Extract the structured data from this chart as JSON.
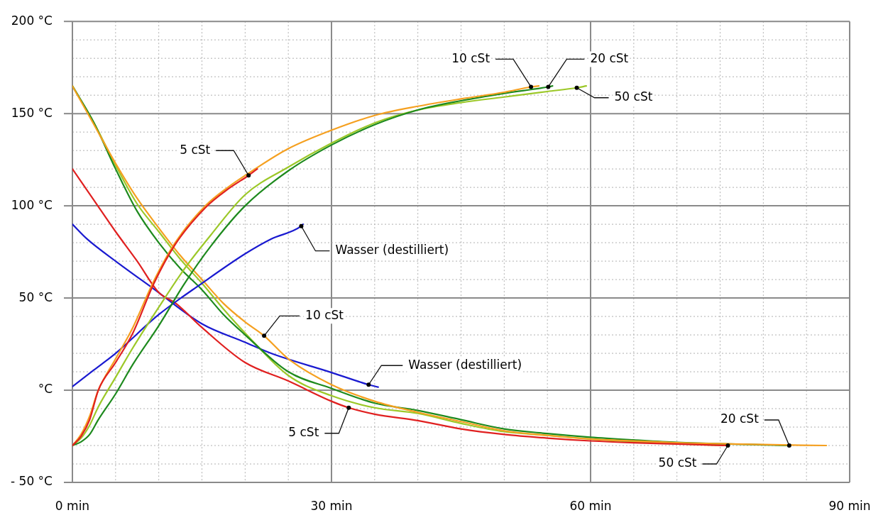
{
  "chart_data": {
    "type": "line",
    "xlim": [
      0,
      90
    ],
    "ylim": [
      -50,
      200
    ],
    "xticks": [
      {
        "value": 0,
        "label": "0 min"
      },
      {
        "value": 5,
        "label": null
      },
      {
        "value": 10,
        "label": null
      },
      {
        "value": 15,
        "label": null
      },
      {
        "value": 20,
        "label": null
      },
      {
        "value": 25,
        "label": null
      },
      {
        "value": 30,
        "label": "30 min"
      },
      {
        "value": 35,
        "label": null
      },
      {
        "value": 40,
        "label": null
      },
      {
        "value": 45,
        "label": null
      },
      {
        "value": 50,
        "label": null
      },
      {
        "value": 55,
        "label": null
      },
      {
        "value": 60,
        "label": "60 min"
      },
      {
        "value": 65,
        "label": null
      },
      {
        "value": 70,
        "label": null
      },
      {
        "value": 75,
        "label": null
      },
      {
        "value": 80,
        "label": null
      },
      {
        "value": 85,
        "label": null
      },
      {
        "value": 90,
        "label": "90 min"
      }
    ],
    "yticks": [
      {
        "value": -50,
        "label": "- 50 °C"
      },
      {
        "value": -40,
        "label": null
      },
      {
        "value": -30,
        "label": null
      },
      {
        "value": -20,
        "label": null
      },
      {
        "value": -10,
        "label": null
      },
      {
        "value": 0,
        "label": "°C"
      },
      {
        "value": 10,
        "label": null
      },
      {
        "value": 20,
        "label": null
      },
      {
        "value": 30,
        "label": null
      },
      {
        "value": 40,
        "label": null
      },
      {
        "value": 50,
        "label": "50 °C"
      },
      {
        "value": 60,
        "label": null
      },
      {
        "value": 70,
        "label": null
      },
      {
        "value": 80,
        "label": null
      },
      {
        "value": 90,
        "label": null
      },
      {
        "value": 100,
        "label": "100 °C"
      },
      {
        "value": 110,
        "label": null
      },
      {
        "value": 120,
        "label": null
      },
      {
        "value": 130,
        "label": null
      },
      {
        "value": 140,
        "label": null
      },
      {
        "value": 150,
        "label": "150 °C"
      },
      {
        "value": 160,
        "label": null
      },
      {
        "value": 170,
        "label": null
      },
      {
        "value": 180,
        "label": null
      },
      {
        "value": 190,
        "label": null
      },
      {
        "value": 200,
        "label": "200 °C"
      }
    ],
    "grid": true,
    "legend": false,
    "marker": "none",
    "line_style": "solid",
    "series": [
      {
        "name": "5 cSt",
        "color": "#e02020",
        "x": [
          0,
          1,
          2,
          3,
          5,
          7,
          9.4,
          11.9,
          15.4,
          18,
          20.4,
          21.4
        ],
        "values": [
          -30,
          -25,
          -16,
          0,
          15,
          31,
          57.5,
          79,
          99,
          109,
          116.5,
          120
        ]
      },
      {
        "name": "10 cSt",
        "color": "#f5a020",
        "x": [
          0,
          1,
          2,
          3,
          5,
          7,
          9.4,
          11.9,
          15.4,
          18,
          21,
          25,
          30,
          35,
          40,
          45,
          50,
          53.1,
          54
        ],
        "values": [
          -30,
          -24,
          -14,
          0,
          17,
          34,
          59,
          80,
          100,
          110,
          119.5,
          131,
          141,
          149,
          154,
          158,
          161.6,
          164.5,
          165
        ]
      },
      {
        "name": "20 cSt",
        "color": "#1e8a1e",
        "x": [
          0,
          1,
          2,
          3,
          5,
          7,
          10,
          13,
          16,
          20,
          25,
          30,
          35,
          40,
          45,
          50,
          55.1,
          55.6
        ],
        "values": [
          -30,
          -28,
          -24,
          -16,
          -2,
          14,
          35,
          58,
          78,
          100,
          119,
          133,
          144,
          152,
          157,
          161,
          164.5,
          165
        ]
      },
      {
        "name": "50 cSt",
        "color": "#9cc828",
        "x": [
          0,
          1,
          2,
          3,
          5,
          7,
          10,
          13,
          16,
          20,
          25,
          30,
          35,
          40,
          45,
          50,
          55,
          58.4,
          59.5
        ],
        "values": [
          -30,
          -26,
          -19,
          -9,
          7,
          23,
          45,
          66,
          84,
          106,
          121,
          134,
          145,
          152,
          156,
          159,
          162,
          164,
          165
        ]
      },
      {
        "name": "Wasser (destilliert)",
        "color": "#1a1ad0",
        "x": [
          0,
          2.5,
          5,
          10,
          15,
          20,
          23,
          26.5,
          26.7
        ],
        "values": [
          2,
          11,
          20,
          41,
          58,
          74,
          82,
          89,
          90
        ]
      },
      {
        "name": "5 cSt",
        "color": "#e02020",
        "x": [
          0,
          2.5,
          5,
          7.5,
          10,
          12,
          15,
          20,
          25,
          30,
          32,
          35,
          40,
          45,
          50,
          55,
          60,
          65,
          70,
          75.7
        ],
        "values": [
          120,
          103,
          86,
          70,
          53,
          47,
          34,
          15,
          5,
          -6,
          -9.5,
          -13,
          -16.5,
          -21,
          -24,
          -26,
          -27.5,
          -28.5,
          -29.2,
          -30
        ]
      },
      {
        "name": "10 cSt",
        "color": "#f5a020",
        "x": [
          0,
          2.5,
          5,
          7.5,
          10,
          12.5,
          15,
          17.5,
          20,
          22.2,
          25,
          30,
          35,
          40,
          45,
          50,
          55,
          60,
          65,
          70,
          75,
          80,
          87.3
        ],
        "values": [
          165,
          144,
          123,
          104,
          88,
          73,
          60,
          47,
          37,
          29.5,
          17,
          3,
          -6,
          -12,
          -17,
          -22,
          -24.5,
          -26.5,
          -27.5,
          -28.5,
          -29,
          -29.5,
          -30
        ]
      },
      {
        "name": "20 cSt",
        "color": "#1e8a1e",
        "x": [
          0,
          2.5,
          5,
          7.5,
          10,
          12.5,
          15,
          17.5,
          20,
          25,
          30,
          35,
          40,
          45,
          50,
          55,
          60,
          65,
          70,
          83
        ],
        "values": [
          165,
          145,
          120,
          97,
          80,
          66,
          54.5,
          41,
          30,
          10,
          1,
          -7,
          -11,
          -16,
          -21,
          -23.5,
          -25.5,
          -27,
          -28.3,
          -30
        ]
      },
      {
        "name": "50 cSt",
        "color": "#9cc828",
        "x": [
          0,
          2.5,
          5,
          7.5,
          10,
          12.5,
          15,
          17.5,
          20,
          25,
          30,
          35,
          40,
          45,
          50,
          55,
          60,
          65,
          70,
          75.9
        ],
        "values": [
          165,
          145,
          122,
          101,
          86,
          71,
          58,
          44,
          31,
          8,
          -3,
          -9.5,
          -12.6,
          -18,
          -22.5,
          -24.5,
          -26.5,
          -28,
          -29,
          -30
        ]
      },
      {
        "name": "Wasser (destilliert)",
        "color": "#1a1ad0",
        "x": [
          0,
          1.7,
          5,
          9.4,
          15,
          20,
          23,
          30,
          34.3,
          35.4
        ],
        "values": [
          90,
          82,
          70,
          55,
          36,
          26,
          20,
          9.6,
          3,
          1.7
        ]
      }
    ]
  }
}
